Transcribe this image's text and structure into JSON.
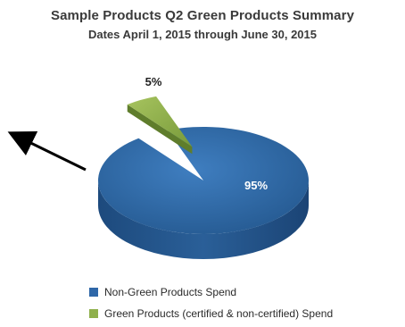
{
  "chart_data": {
    "type": "pie",
    "title": "Sample Products Q2 Green Products Summary",
    "subtitle": "Dates April 1, 2015 through June 30, 2015",
    "slices": [
      {
        "label": "Non-Green Products Spend",
        "value": 95,
        "display": "95%",
        "color": "#2f67a8"
      },
      {
        "label": "Green Products (certified & non-certified) Spend",
        "value": 5,
        "display": "5%",
        "color": "#8fb04c"
      }
    ],
    "legend_position": "bottom",
    "style": "3d"
  },
  "annotation": {
    "arrow-icon": "arrow pointing up-left"
  }
}
